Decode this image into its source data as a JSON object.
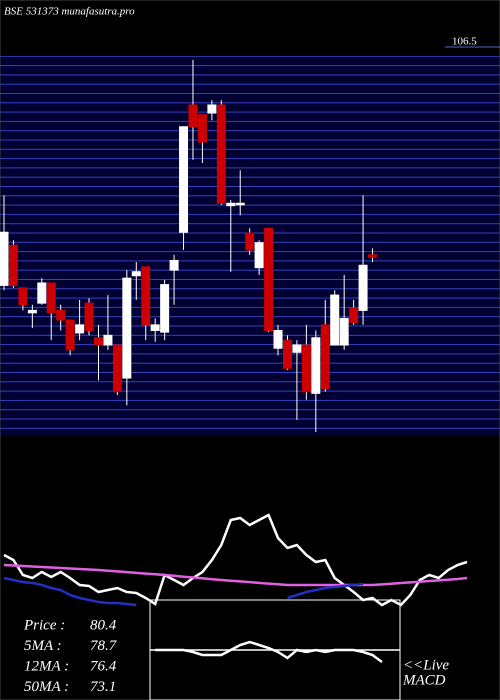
{
  "chart_data": [
    {
      "type": "candlestick",
      "title": "BSE 531373 munafasutra.pro",
      "xlim": [
        0,
        49
      ],
      "ylim": [
        58.7,
        106.5
      ],
      "yticks": [
        106.5
      ],
      "up_color": "#ffffff",
      "down_color": "#cc0000",
      "x": [
        0,
        1,
        2,
        3,
        4,
        5,
        6,
        7,
        8,
        9,
        10,
        11,
        12,
        13,
        14,
        15,
        16,
        17,
        18,
        19,
        20,
        21,
        22,
        23,
        24,
        25,
        26,
        27,
        28,
        29,
        30,
        31,
        32,
        33,
        34,
        35,
        36,
        37,
        38,
        39
      ],
      "open": [
        76.9,
        81.9,
        76.6,
        73.5,
        74.7,
        77.2,
        73.8,
        72.6,
        71.0,
        74.7,
        70.4,
        69.5,
        69.5,
        65.4,
        78.1,
        79.2,
        71.3,
        71.1,
        78.8,
        83.5,
        99.3,
        98.1,
        98.3,
        99.3,
        86.8,
        86.9,
        83.4,
        79.1,
        84.0,
        69.1,
        70.1,
        68.6,
        69.5,
        63.5,
        72.0,
        69.5,
        69.5,
        74.1,
        73.8,
        80.7
      ],
      "high": [
        88.1,
        82.5,
        76.6,
        74.5,
        77.8,
        77.2,
        74.5,
        72.6,
        75.1,
        75.3,
        72.0,
        75.7,
        69.5,
        78.8,
        79.8,
        79.2,
        72.8,
        77.6,
        80.7,
        96.6,
        104.9,
        98.1,
        99.9,
        99.9,
        87.5,
        91.2,
        84.0,
        82.5,
        84.0,
        72.0,
        70.7,
        70.1,
        72.0,
        71.3,
        75.1,
        76.3,
        78.2,
        75.1,
        88.1,
        81.5
      ],
      "low": [
        76.3,
        76.6,
        73.8,
        71.6,
        74.5,
        70.1,
        71.3,
        68.2,
        70.1,
        70.7,
        65.1,
        68.9,
        63.3,
        62.0,
        75.1,
        70.1,
        69.9,
        70.1,
        74.5,
        81.3,
        92.5,
        92.1,
        97.4,
        86.9,
        78.6,
        85.6,
        80.7,
        78.2,
        71.1,
        68.2,
        66.4,
        60.2,
        62.7,
        58.7,
        63.7,
        69.5,
        68.9,
        72.0,
        72.0,
        79.8
      ],
      "close": [
        83.5,
        76.9,
        74.5,
        73.8,
        77.2,
        73.5,
        72.6,
        68.9,
        72.0,
        71.3,
        69.5,
        70.7,
        63.7,
        77.8,
        78.6,
        72.0,
        72.0,
        77.0,
        80.0,
        96.6,
        96.6,
        94.7,
        99.3,
        87.1,
        87.1,
        87.1,
        81.3,
        82.2,
        71.3,
        71.3,
        66.6,
        69.5,
        63.7,
        70.4,
        64.1,
        75.7,
        72.8,
        72.3,
        79.4,
        80.4
      ]
    },
    {
      "type": "line",
      "xlim": [
        0,
        49
      ],
      "ylim": [
        0,
        260
      ],
      "x": [
        0,
        1,
        2,
        3,
        4,
        5,
        6,
        7,
        8,
        9,
        10,
        11,
        12,
        13,
        14,
        15,
        16,
        17,
        18,
        19,
        20,
        21,
        22,
        23,
        24,
        25,
        26,
        27,
        28,
        29,
        30,
        31,
        32,
        33,
        34,
        35,
        36,
        37,
        38,
        39,
        40,
        41,
        42,
        43,
        44,
        45,
        46,
        47,
        48,
        49
      ],
      "series": [
        {
          "color": "#ffffff",
          "values": [
            145,
            140,
            125,
            122,
            128,
            123,
            128,
            122,
            115,
            114,
            108,
            110,
            112,
            108,
            107,
            102,
            96,
            125,
            120,
            115,
            122,
            128,
            140,
            155,
            180,
            182,
            175,
            180,
            185,
            162,
            152,
            155,
            145,
            138,
            140,
            122,
            115,
            108,
            100,
            102,
            95,
            100,
            95,
            105,
            120,
            125,
            122,
            130,
            135,
            138
          ]
        },
        {
          "color": "#e060e0",
          "values": [
            135,
            134.5,
            134,
            133.5,
            133,
            132.5,
            132,
            131.5,
            131,
            130.5,
            130,
            129.3,
            128.6,
            127.9,
            127.1,
            126.4,
            125.7,
            125,
            124.2,
            123.3,
            122.5,
            121.7,
            120.8,
            120,
            119.3,
            118.6,
            117.9,
            117.1,
            116.4,
            115.7,
            115,
            115,
            115,
            115,
            115,
            115,
            115,
            115,
            115,
            115,
            115.6,
            116.3,
            117,
            117.6,
            118.3,
            119,
            119.6,
            120.3,
            121,
            122
          ]
        },
        {
          "color": "#2030c0",
          "values": [
            122,
            120,
            118,
            117,
            115,
            112,
            110,
            105,
            102,
            100,
            98,
            97,
            97,
            96,
            95,
            null,
            null,
            null,
            null,
            null,
            null,
            null,
            null,
            null,
            null,
            null,
            null,
            null,
            null,
            null,
            102,
            105,
            108,
            110,
            112,
            113,
            114,
            115,
            116,
            null,
            null,
            null,
            null,
            null,
            null,
            null,
            null,
            null,
            null,
            null
          ]
        },
        {
          "color": "#ffffff",
          "values": [
            null,
            null,
            null,
            null,
            null,
            null,
            null,
            null,
            null,
            null,
            null,
            null,
            null,
            null,
            null,
            null,
            50,
            50,
            50,
            50,
            48,
            45,
            45,
            45,
            50,
            55,
            58,
            55,
            52,
            48,
            42,
            50,
            48,
            50,
            48,
            50,
            50,
            50,
            48,
            45,
            38,
            null,
            null,
            null,
            null,
            null,
            null,
            null,
            null,
            null
          ]
        }
      ]
    }
  ],
  "readout": [
    {
      "label": "Price  :",
      "value": 80.4
    },
    {
      "label": "5MA :",
      "value": 78.7
    },
    {
      "label": "12MA :",
      "value": 76.4
    },
    {
      "label": "50MA :",
      "value": 73.1
    }
  ],
  "live_label": "<<Live",
  "macd_label": "MACD"
}
